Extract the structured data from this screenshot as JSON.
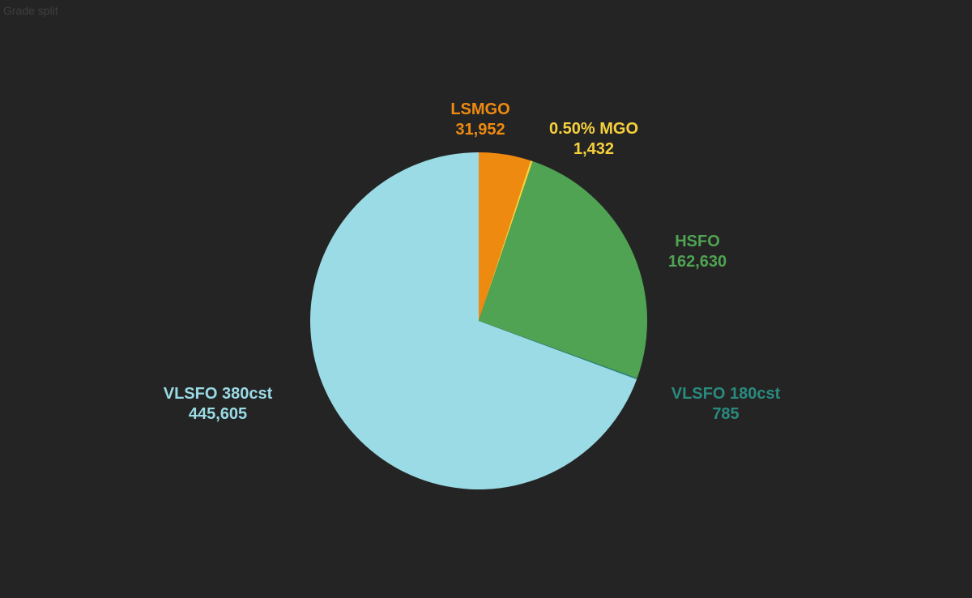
{
  "page": {
    "title": "Grade split"
  },
  "chart_data": {
    "type": "pie",
    "start": "top",
    "direction": "clockwise",
    "slices": [
      {
        "label": "LSMGO",
        "value": 31952,
        "value_label": "31,952",
        "color": "#ef8a10"
      },
      {
        "label": "0.50% MGO",
        "value": 1432,
        "value_label": "1,432",
        "color": "#f7d13c"
      },
      {
        "label": "HSFO",
        "value": 162630,
        "value_label": "162,630",
        "color": "#4fa352"
      },
      {
        "label": "VLSFO 180cst",
        "value": 785,
        "value_label": "785",
        "color": "#2a8a7e"
      },
      {
        "label": "VLSFO 380cst",
        "value": 445605,
        "value_label": "445,605",
        "color": "#9adbe6"
      }
    ]
  }
}
